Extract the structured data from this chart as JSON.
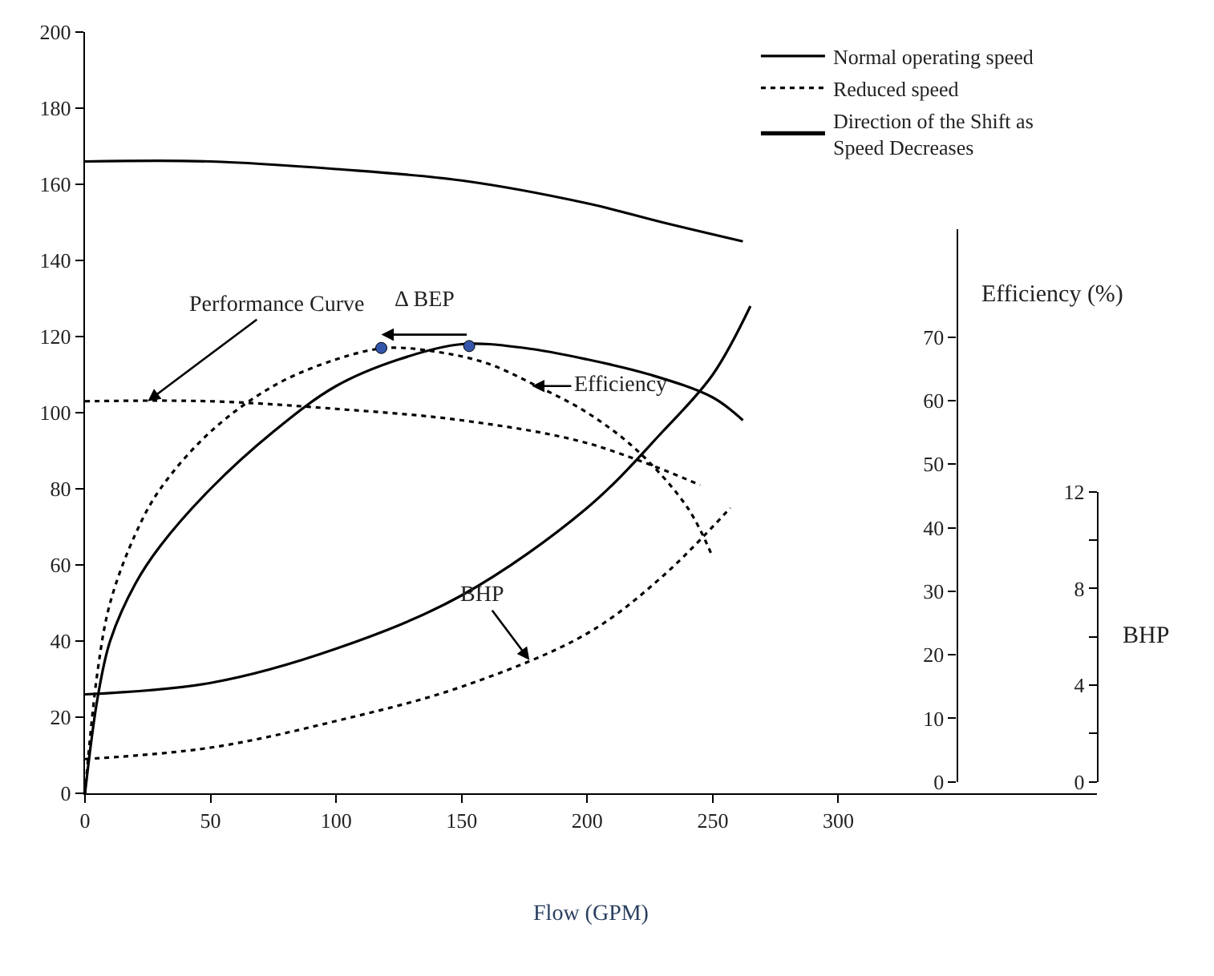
{
  "chart_data": {
    "type": "line",
    "xlabel": "Flow (GPM)",
    "y2label": "Efficiency (%)",
    "y3label": "BHP",
    "xlim": [
      0,
      403
    ],
    "xticks": [
      0,
      50,
      100,
      150,
      200,
      250,
      300
    ],
    "ylim": [
      0,
      200
    ],
    "yticks": [
      0,
      20,
      40,
      60,
      80,
      100,
      120,
      140,
      160,
      180,
      200
    ],
    "y2lim": [
      0,
      87
    ],
    "y2ticks": [
      0,
      10,
      20,
      30,
      40,
      50,
      60,
      70
    ],
    "y3lim": [
      0,
      12
    ],
    "y3ticks": [
      0,
      {
        "value": 2,
        "label": null
      },
      4,
      {
        "value": 6,
        "label": null
      },
      8,
      {
        "value": 10,
        "label": null
      },
      12
    ],
    "grid": false,
    "legend": "top right",
    "marker": "none",
    "series": [
      {
        "name": "Normal operating speed",
        "color": "#000000",
        "line_style": "solid",
        "x": [
          0,
          50,
          100,
          150,
          200,
          230,
          262
        ],
        "values": [
          166,
          166,
          164,
          161,
          155,
          150,
          145
        ]
      },
      {
        "name": "Reduced speed",
        "color": "#000000",
        "line_style": "dotted",
        "x": [
          0,
          50,
          100,
          150,
          200,
          245
        ],
        "values": [
          103,
          103,
          101,
          98,
          92,
          81
        ]
      },
      {
        "color": "#000000",
        "line_style": "solid",
        "x": [
          0,
          5,
          10,
          20,
          30,
          50,
          75,
          100,
          125,
          150,
          175,
          200,
          225,
          250,
          262
        ],
        "values": [
          0,
          25,
          40,
          55,
          65,
          80,
          95,
          107,
          114,
          118,
          117,
          114,
          110,
          104,
          98
        ]
      },
      {
        "color": "#000000",
        "line_style": "dotted",
        "x": [
          0,
          5,
          10,
          20,
          30,
          50,
          75,
          100,
          120,
          140,
          160,
          180,
          200,
          220,
          240,
          250
        ],
        "values": [
          0,
          32,
          50,
          68,
          80,
          95,
          107,
          114,
          117,
          116,
          113,
          107,
          100,
          90,
          75,
          62
        ]
      },
      {
        "color": "#000000",
        "line_style": "solid",
        "x": [
          0,
          50,
          100,
          150,
          200,
          230,
          250,
          265
        ],
        "values": [
          26,
          29,
          38,
          52,
          75,
          95,
          110,
          128
        ]
      },
      {
        "color": "#000000",
        "line_style": "dotted",
        "x": [
          0,
          50,
          100,
          150,
          200,
          230,
          257
        ],
        "values": [
          9,
          12,
          19,
          28,
          42,
          57,
          75
        ]
      },
      {
        "type": "scatter",
        "marker": "circle",
        "color": "#3355aa",
        "x": [
          118,
          153
        ],
        "values": [
          117,
          117.5
        ]
      }
    ],
    "annotations": [
      {
        "text": "Performance Curve",
        "x": 25,
        "y": 103
      },
      {
        "text": "Efficiency",
        "x": 178,
        "y": 107
      },
      {
        "text": "BHP",
        "x": 177,
        "y": 35
      },
      "Δ BEP",
      "Direction of the Shift as Speed Decreases"
    ]
  }
}
